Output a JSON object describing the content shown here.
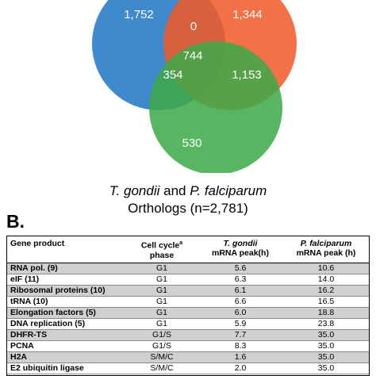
{
  "venn": {
    "colors": {
      "blue": "#1f77c4",
      "orange": "#f05a28",
      "green": "#3daa48"
    },
    "regions": {
      "blue_only": "1,752",
      "blue_orange": "0",
      "orange_only": "1,344",
      "all_three": "744",
      "blue_green": "354",
      "orange_green": "1,153",
      "green_only": "530"
    }
  },
  "caption": {
    "species1": "T. gondii",
    "and": " and ",
    "species2": "P. falciparum",
    "line2": "Orthologs (n=2,781)"
  },
  "section_label": "B.",
  "table": {
    "headers": {
      "gene_product": "Gene product",
      "cell_cycle_line1": "Cell cycle",
      "cell_cycle_sup": "a",
      "cell_cycle_line2": "phase",
      "tg_line1": "T. gondii",
      "tg_line2": "mRNA peak(h)",
      "pf_line1": "P. falciparum",
      "pf_line2": "mRNA peak (h)"
    },
    "rows": [
      {
        "gene": "RNA pol. (9)",
        "phase": "G1",
        "tg": "5.6",
        "pf": "10.6"
      },
      {
        "gene": "eIF (11)",
        "phase": "G1",
        "tg": "6.3",
        "pf": "14.0"
      },
      {
        "gene": "Ribosomal proteins (10)",
        "phase": "G1",
        "tg": "6.1",
        "pf": "16.2"
      },
      {
        "gene": "tRNA (10)",
        "phase": "G1",
        "tg": "6.6",
        "pf": "16.5"
      },
      {
        "gene": "Elongation factors (5)",
        "phase": "G1",
        "tg": "6.0",
        "pf": "18.8"
      },
      {
        "gene": "DNA replication (5)",
        "phase": "G1",
        "tg": "5.9",
        "pf": "23.8"
      },
      {
        "gene": "DHFR-TS",
        "phase": "G1/S",
        "tg": "7.7",
        "pf": "35.0"
      },
      {
        "gene": "PCNA",
        "phase": "G1/S",
        "tg": "8.3",
        "pf": "35.0"
      },
      {
        "gene": "H2A",
        "phase": "S/M/C",
        "tg": "1.6",
        "pf": "35.0"
      },
      {
        "gene": "E2 ubiquitin ligase",
        "phase": "S/M/C",
        "tg": "2.0",
        "pf": "35.0"
      }
    ]
  }
}
